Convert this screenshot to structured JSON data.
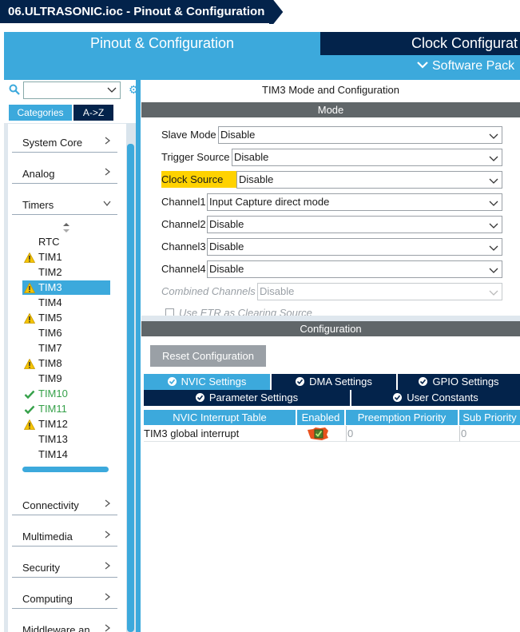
{
  "window": {
    "breadcrumb": "06.ULTRASONIC.ioc - Pinout & Configuration"
  },
  "top_tabs": {
    "pinout": "Pinout & Configuration",
    "clock": "Clock Configurat",
    "software_packs": "Software Pack"
  },
  "sidebar": {
    "search_placeholder": "",
    "tabs": {
      "categories": "Categories",
      "az": "A->Z"
    },
    "categories_top": [
      {
        "label": "System Core"
      },
      {
        "label": "Analog"
      },
      {
        "label": "Timers"
      }
    ],
    "timers": [
      {
        "label": "RTC",
        "status": "none"
      },
      {
        "label": "TIM1",
        "status": "warning"
      },
      {
        "label": "TIM2",
        "status": "none"
      },
      {
        "label": "TIM3",
        "status": "warning",
        "selected": true
      },
      {
        "label": "TIM4",
        "status": "none"
      },
      {
        "label": "TIM5",
        "status": "warning"
      },
      {
        "label": "TIM6",
        "status": "none"
      },
      {
        "label": "TIM7",
        "status": "none"
      },
      {
        "label": "TIM8",
        "status": "warning"
      },
      {
        "label": "TIM9",
        "status": "none"
      },
      {
        "label": "TIM10",
        "status": "ok"
      },
      {
        "label": "TIM11",
        "status": "ok"
      },
      {
        "label": "TIM12",
        "status": "warning"
      },
      {
        "label": "TIM13",
        "status": "none"
      },
      {
        "label": "TIM14",
        "status": "none"
      }
    ],
    "categories_bottom": [
      {
        "label": "Connectivity"
      },
      {
        "label": "Multimedia"
      },
      {
        "label": "Security"
      },
      {
        "label": "Computing"
      },
      {
        "label": "Middleware an"
      }
    ]
  },
  "main": {
    "section_title": "TIM3 Mode and Configuration",
    "mode_header": "Mode",
    "mode_rows": [
      {
        "label": "Slave Mode",
        "value": "Disable"
      },
      {
        "label": "Trigger Source",
        "value": "Disable"
      },
      {
        "label": "Clock Source",
        "value": "Disable",
        "highlight": true
      },
      {
        "label": "Channel1",
        "value": "Input Capture direct mode"
      },
      {
        "label": "Channel2",
        "value": "Disable"
      },
      {
        "label": "Channel3",
        "value": "Disable"
      },
      {
        "label": "Channel4",
        "value": "Disable"
      },
      {
        "label": "Combined Channels",
        "value": "Disable",
        "disabled": true
      }
    ],
    "use_etr_label": "Use ETR as Clearing Source",
    "config_header": "Configuration",
    "reset_button": "Reset Configuration",
    "config_tabs": [
      {
        "label": "NVIC Settings",
        "active": true
      },
      {
        "label": "DMA Settings",
        "active": false
      },
      {
        "label": "GPIO Settings",
        "active": false
      },
      {
        "label": "Parameter Settings",
        "active": false
      },
      {
        "label": "User Constants",
        "active": false
      }
    ],
    "nvic_table": {
      "headers": [
        "NVIC Interrupt Table",
        "Enabled",
        "Preemption Priority",
        "Sub Priority"
      ],
      "rows": [
        {
          "name": "TIM3 global interrupt",
          "enabled": true,
          "preemption": "0",
          "sub": "0"
        }
      ]
    }
  },
  "colors": {
    "navy": "#03234b",
    "accent": "#3ca9dc",
    "header_gray": "#606669",
    "warning": "#f5c400",
    "ok": "#36a14a",
    "highlight": "#ffd200",
    "check_orange": "#e8521e"
  }
}
